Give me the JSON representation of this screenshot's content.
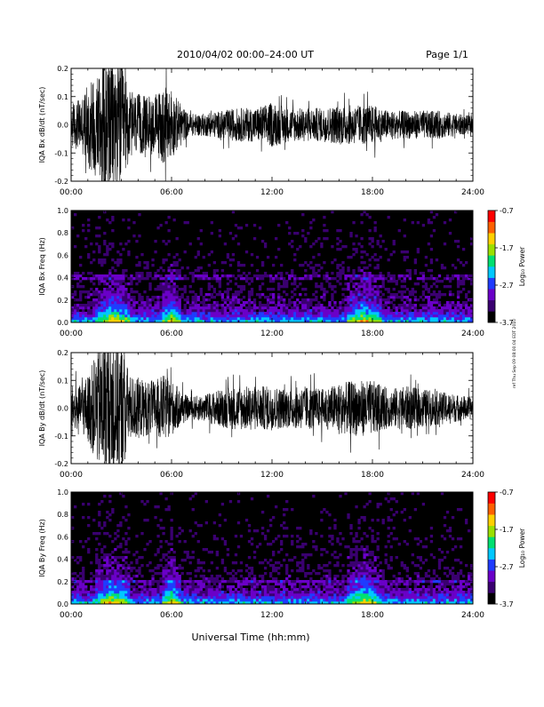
{
  "header": {
    "title": "2010/04/02  00:00–24:00 UT",
    "page": "Page 1/1"
  },
  "footer": {
    "xlabel": "Universal Time (hh:mm)",
    "side_note": "ref Thu Sep 09 08:00:04 EDT 2010"
  },
  "colors": {
    "trace": "#000000",
    "colorbar": [
      "#000000",
      "#3a0070",
      "#6a00c8",
      "#1f3cff",
      "#00c8ff",
      "#00e070",
      "#9be000",
      "#ffd000",
      "#ff6000",
      "#ff0000"
    ]
  },
  "chart_data": [
    {
      "type": "line",
      "ylabel": "IQA Bx dB/dt (nT/sec)",
      "xlim": [
        "00:00",
        "24:00"
      ],
      "ylim": [
        -0.2,
        0.2
      ],
      "xticks": [
        "00:00",
        "06:00",
        "12:00",
        "18:00",
        "24:00"
      ],
      "yticks": [
        "-0.2",
        "-0.1",
        "0.0",
        "0.1",
        "0.2"
      ],
      "envelope": {
        "hours": [
          0,
          0.5,
          1,
          1.5,
          2,
          2.5,
          3,
          3.5,
          4,
          4.5,
          5,
          5.5,
          6,
          7,
          8,
          9,
          10,
          11,
          12,
          13,
          14,
          15,
          16,
          17,
          18,
          19,
          20,
          21,
          22,
          23,
          24
        ],
        "amplitude_nT_per_s": [
          0.08,
          0.09,
          0.14,
          0.2,
          0.25,
          0.25,
          0.22,
          0.12,
          0.11,
          0.1,
          0.11,
          0.14,
          0.12,
          0.04,
          0.04,
          0.05,
          0.06,
          0.06,
          0.08,
          0.06,
          0.06,
          0.06,
          0.07,
          0.07,
          0.07,
          0.05,
          0.05,
          0.05,
          0.05,
          0.04,
          0.03
        ]
      }
    },
    {
      "type": "heatmap",
      "ylabel": "IQA Bx Freq (Hz)",
      "xlim": [
        "00:00",
        "24:00"
      ],
      "ylim": [
        0,
        1.0
      ],
      "xticks": [
        "00:00",
        "06:00",
        "12:00",
        "18:00",
        "24:00"
      ],
      "yticks": [
        "0.0",
        "0.2",
        "0.4",
        "0.6",
        "0.8",
        "1.0"
      ],
      "colorbar": {
        "label": "Log₁₀ Power",
        "range": [
          -3.7,
          -0.7
        ],
        "ticks": [
          "-0.7",
          "-1.7",
          "-2.7",
          "-3.7"
        ]
      },
      "features": {
        "band_hz": 0.4,
        "activity_hours": [
          [
            1.5,
            3.5
          ],
          [
            5.5,
            6.5
          ],
          [
            16.5,
            18.5
          ]
        ]
      }
    },
    {
      "type": "line",
      "ylabel": "IQA By dB/dt (nT/sec)",
      "xlim": [
        "00:00",
        "24:00"
      ],
      "ylim": [
        -0.2,
        0.2
      ],
      "xticks": [
        "00:00",
        "06:00",
        "12:00",
        "18:00",
        "24:00"
      ],
      "yticks": [
        "-0.2",
        "-0.1",
        "0.0",
        "0.1",
        "0.2"
      ],
      "envelope": {
        "hours": [
          0,
          0.5,
          1,
          1.5,
          2,
          2.5,
          3,
          3.5,
          4,
          4.5,
          5,
          5.5,
          6,
          7,
          8,
          9,
          10,
          11,
          12,
          13,
          14,
          15,
          16,
          17,
          18,
          19,
          20,
          21,
          22,
          23,
          24
        ],
        "amplitude_nT_per_s": [
          0.08,
          0.08,
          0.12,
          0.2,
          0.26,
          0.26,
          0.24,
          0.12,
          0.11,
          0.1,
          0.1,
          0.12,
          0.1,
          0.04,
          0.05,
          0.07,
          0.08,
          0.08,
          0.08,
          0.07,
          0.08,
          0.07,
          0.09,
          0.1,
          0.1,
          0.07,
          0.08,
          0.07,
          0.06,
          0.05,
          0.04
        ]
      }
    },
    {
      "type": "heatmap",
      "ylabel": "IQA By Freq (Hz)",
      "xlim": [
        "00:00",
        "24:00"
      ],
      "ylim": [
        0,
        1.0
      ],
      "xticks": [
        "00:00",
        "06:00",
        "12:00",
        "18:00",
        "24:00"
      ],
      "yticks": [
        "0.0",
        "0.2",
        "0.4",
        "0.6",
        "0.8",
        "1.0"
      ],
      "colorbar": {
        "label": "Log₁₀ Power",
        "range": [
          -3.7,
          -0.7
        ],
        "ticks": [
          "-0.7",
          "-1.7",
          "-2.7",
          "-3.7"
        ]
      },
      "features": {
        "band_hz": 0.2,
        "activity_hours": [
          [
            1.5,
            3.5
          ],
          [
            5.5,
            6.5
          ],
          [
            16.5,
            18.5
          ]
        ]
      }
    }
  ]
}
